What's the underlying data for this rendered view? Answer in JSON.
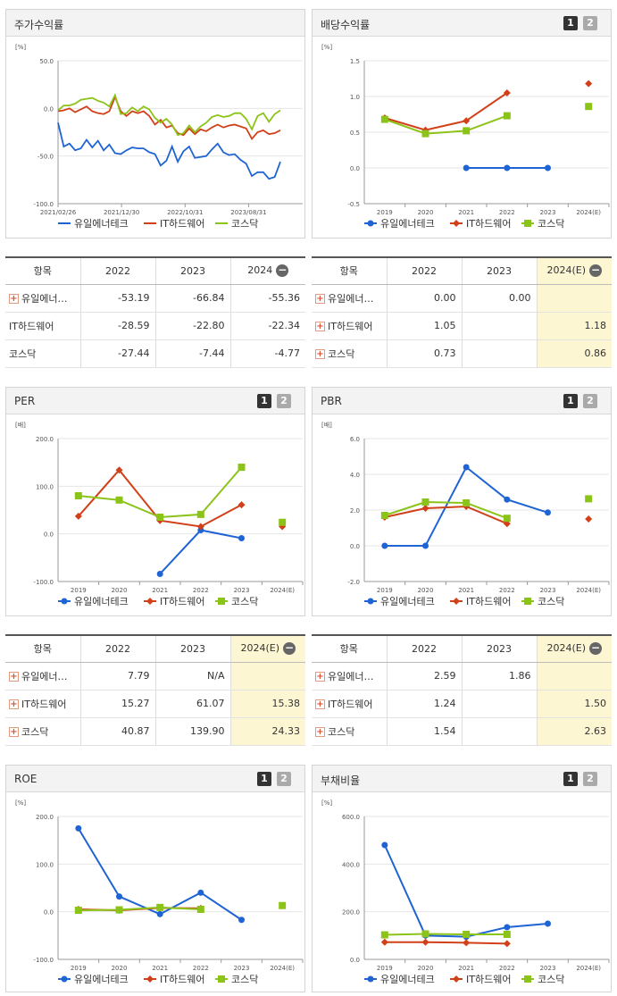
{
  "panels": {
    "stock": {
      "title": "주가수익률"
    },
    "div": {
      "title": "배당수익률",
      "btn1": "1",
      "btn2": "2"
    },
    "per": {
      "title": "PER",
      "btn1": "1",
      "btn2": "2"
    },
    "pbr": {
      "title": "PBR",
      "btn1": "1",
      "btn2": "2"
    },
    "roe": {
      "title": "ROE",
      "btn1": "1",
      "btn2": "2"
    },
    "debt": {
      "title": "부채비율",
      "btn1": "1",
      "btn2": "2"
    }
  },
  "legend": [
    "유일에너테크",
    "IT하드웨어",
    "코스닥"
  ],
  "colors": {
    "company": "#1f64d4",
    "industry": "#d2401a",
    "market": "#8cc318"
  },
  "tables": {
    "stock": {
      "headers": [
        "항목",
        "2022",
        "2023",
        "2024"
      ],
      "rows": [
        {
          "name": "유일에너…",
          "plus": true,
          "values": [
            "-53.19",
            "-66.84",
            "-55.36"
          ]
        },
        {
          "name": "IT하드웨어",
          "plus": false,
          "values": [
            "-28.59",
            "-22.80",
            "-22.34"
          ]
        },
        {
          "name": "코스닥",
          "plus": false,
          "values": [
            "-27.44",
            "-7.44",
            "-4.77"
          ]
        }
      ]
    },
    "div": {
      "headers": [
        "항목",
        "2022",
        "2023",
        "2024(E)"
      ],
      "rows": [
        {
          "name": "유일에너…",
          "plus": true,
          "values": [
            "0.00",
            "0.00",
            ""
          ]
        },
        {
          "name": "IT하드웨어",
          "plus": true,
          "values": [
            "1.05",
            "",
            "1.18"
          ]
        },
        {
          "name": "코스닥",
          "plus": true,
          "values": [
            "0.73",
            "",
            "0.86"
          ]
        }
      ]
    },
    "per": {
      "headers": [
        "항목",
        "2022",
        "2023",
        "2024(E)"
      ],
      "rows": [
        {
          "name": "유일에너…",
          "plus": true,
          "values": [
            "7.79",
            "N/A",
            ""
          ]
        },
        {
          "name": "IT하드웨어",
          "plus": true,
          "values": [
            "15.27",
            "61.07",
            "15.38"
          ]
        },
        {
          "name": "코스닥",
          "plus": true,
          "values": [
            "40.87",
            "139.90",
            "24.33"
          ]
        }
      ]
    },
    "pbr": {
      "headers": [
        "항목",
        "2022",
        "2023",
        "2024(E)"
      ],
      "rows": [
        {
          "name": "유일에너…",
          "plus": true,
          "values": [
            "2.59",
            "1.86",
            ""
          ]
        },
        {
          "name": "IT하드웨어",
          "plus": true,
          "values": [
            "1.24",
            "",
            "1.50"
          ]
        },
        {
          "name": "코스닥",
          "plus": true,
          "values": [
            "1.54",
            "",
            "2.63"
          ]
        }
      ]
    }
  },
  "chart_data": [
    {
      "id": "stock",
      "type": "line",
      "unit": "[%]",
      "ylim": [
        -100,
        50
      ],
      "yticks": [
        "50.0",
        "0.0",
        "-50.0",
        "-100.0"
      ],
      "xlabels": [
        "2021/02/26",
        "2021/12/30",
        "2022/10/31",
        "2023/08/31"
      ],
      "series": [
        {
          "name": "유일에너테크",
          "values": [
            -15,
            -40,
            -37,
            -44,
            -42,
            -33,
            -41,
            -34,
            -44,
            -38,
            -47,
            -48,
            -44,
            -41,
            -42,
            -42,
            -46,
            -48,
            -60,
            -55,
            -40,
            -56,
            -45,
            -40,
            -52,
            -51,
            -50,
            -43,
            -37,
            -46,
            -49,
            -48,
            -54,
            -58,
            -71,
            -67,
            -67,
            -74,
            -72,
            -56
          ]
        },
        {
          "name": "IT하드웨어",
          "values": [
            -3,
            -2,
            0,
            -4,
            -1,
            2,
            -3,
            -5,
            -6,
            -3,
            12,
            -3,
            -8,
            -3,
            -5,
            -3,
            -8,
            -17,
            -12,
            -20,
            -18,
            -26,
            -28,
            -21,
            -27,
            -22,
            -24,
            -20,
            -17,
            -20,
            -18,
            -17,
            -19,
            -21,
            -32,
            -25,
            -23,
            -27,
            -26,
            -23
          ]
        },
        {
          "name": "코스닥",
          "values": [
            -2,
            3,
            3,
            5,
            9,
            10,
            11,
            8,
            6,
            2,
            14,
            -6,
            -5,
            1,
            -3,
            2,
            -1,
            -10,
            -15,
            -11,
            -17,
            -28,
            -26,
            -18,
            -25,
            -19,
            -15,
            -9,
            -7,
            -9,
            -8,
            -5,
            -5,
            -11,
            -22,
            -8,
            -5,
            -14,
            -6,
            -2
          ]
        }
      ]
    },
    {
      "id": "div",
      "type": "line",
      "unit": "[%]",
      "ylim": [
        -0.5,
        1.5
      ],
      "yticks": [
        "1.5",
        "1.0",
        "0.5",
        "0.0",
        "-0.5"
      ],
      "categories": [
        "2019",
        "2020",
        "2021",
        "2022",
        "2023",
        "2024(E)"
      ],
      "series": [
        {
          "name": "유일에너테크",
          "values": [
            null,
            null,
            0.0,
            0.0,
            0.0,
            null
          ]
        },
        {
          "name": "IT하드웨어",
          "values": [
            0.7,
            0.53,
            0.66,
            1.05,
            null,
            1.18
          ]
        },
        {
          "name": "코스닥",
          "values": [
            0.68,
            0.48,
            0.52,
            0.73,
            null,
            0.86
          ]
        }
      ]
    },
    {
      "id": "per",
      "type": "line",
      "unit": "[배]",
      "ylim": [
        -100,
        200
      ],
      "yticks": [
        "200.0",
        "100.0",
        "0.0",
        "-100.0"
      ],
      "categories": [
        "2019",
        "2020",
        "2021",
        "2022",
        "2023",
        "2024(E)"
      ],
      "series": [
        {
          "name": "유일에너테크",
          "values": [
            null,
            null,
            -84,
            7.79,
            -9,
            null
          ]
        },
        {
          "name": "IT하드웨어",
          "values": [
            37,
            134,
            28,
            15.27,
            61.07,
            15.38
          ]
        },
        {
          "name": "코스닥",
          "values": [
            80,
            71,
            35,
            40.87,
            139.9,
            24.33
          ]
        }
      ]
    },
    {
      "id": "pbr",
      "type": "line",
      "unit": "[배]",
      "ylim": [
        -2,
        6
      ],
      "yticks": [
        "6.0",
        "4.0",
        "2.0",
        "0.0",
        "-2.0"
      ],
      "categories": [
        "2019",
        "2020",
        "2021",
        "2022",
        "2023",
        "2024(E)"
      ],
      "series": [
        {
          "name": "유일에너테크",
          "values": [
            0.0,
            0.0,
            4.4,
            2.59,
            1.86,
            null
          ]
        },
        {
          "name": "IT하드웨어",
          "values": [
            1.6,
            2.1,
            2.2,
            1.24,
            null,
            1.5
          ]
        },
        {
          "name": "코스닥",
          "values": [
            1.7,
            2.45,
            2.4,
            1.54,
            null,
            2.63
          ]
        }
      ]
    },
    {
      "id": "roe",
      "type": "line",
      "unit": "[%]",
      "ylim": [
        -100,
        200
      ],
      "yticks": [
        "200.0",
        "100.0",
        "0.0",
        "-100.0"
      ],
      "categories": [
        "2019",
        "2020",
        "2021",
        "2022",
        "2023",
        "2024(E)"
      ],
      "series": [
        {
          "name": "유일에너테크",
          "values": [
            175,
            32,
            -5,
            40,
            -17,
            null
          ]
        },
        {
          "name": "IT하드웨어",
          "values": [
            5,
            3,
            8,
            7,
            null,
            null
          ]
        },
        {
          "name": "코스닥",
          "values": [
            3,
            4,
            9,
            5,
            null,
            13
          ]
        }
      ]
    },
    {
      "id": "debt",
      "type": "line",
      "unit": "[%]",
      "ylim": [
        0,
        600
      ],
      "yticks": [
        "600.0",
        "400.0",
        "200.0",
        "0.0"
      ],
      "categories": [
        "2019",
        "2020",
        "2021",
        "2022",
        "2023",
        "2024(E)"
      ],
      "series": [
        {
          "name": "유일에너테크",
          "values": [
            480,
            100,
            95,
            135,
            150,
            null
          ]
        },
        {
          "name": "IT하드웨어",
          "values": [
            72,
            72,
            70,
            66,
            null,
            null
          ]
        },
        {
          "name": "코스닥",
          "values": [
            103,
            107,
            105,
            105,
            null,
            null
          ]
        }
      ]
    }
  ]
}
